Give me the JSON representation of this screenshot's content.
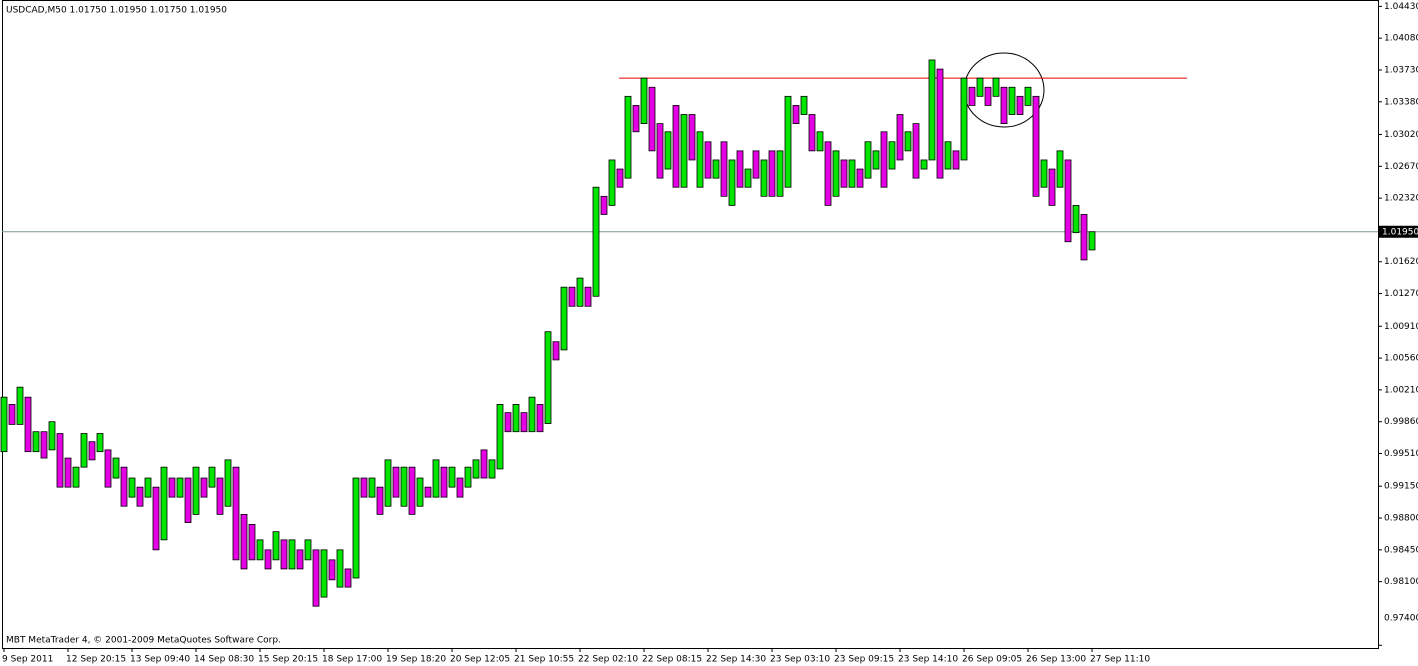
{
  "chart_data": {
    "type": "candlestick",
    "title": "USDCAD,M50  1.01750 1.01950 1.01750 1.01950",
    "footer": "MBT MetaTrader 4, © 2001-2009 MetaQuotes Software Corp.",
    "bull_color": "#00e600",
    "bear_color": "#e600e6",
    "ylim": [
      0.9737,
      1.045
    ],
    "yticks": [
      {
        "value": 1.0443,
        "label": "1.04430"
      },
      {
        "value": 1.0408,
        "label": "1.04080"
      },
      {
        "value": 1.0373,
        "label": "1.03730"
      },
      {
        "value": 1.0338,
        "label": "1.03380"
      },
      {
        "value": 1.0302,
        "label": "1.03020"
      },
      {
        "value": 1.0267,
        "label": "1.02670"
      },
      {
        "value": 1.0232,
        "label": "1.02320"
      },
      {
        "value": 1.0162,
        "label": "1.01620"
      },
      {
        "value": 1.0127,
        "label": "1.01270"
      },
      {
        "value": 1.0091,
        "label": "1.00910"
      },
      {
        "value": 1.0056,
        "label": "1.00560"
      },
      {
        "value": 1.0021,
        "label": "1.00210"
      },
      {
        "value": 0.9986,
        "label": "0.99860"
      },
      {
        "value": 0.9951,
        "label": "0.99510"
      },
      {
        "value": 0.9915,
        "label": "0.99150"
      },
      {
        "value": 0.988,
        "label": "0.98800"
      },
      {
        "value": 0.9845,
        "label": "0.98450"
      },
      {
        "value": 0.981,
        "label": "0.98100"
      },
      {
        "value": 0.974,
        "label": "0.97400"
      }
    ],
    "current_price": {
      "value": 1.0195,
      "label": "1.01950"
    },
    "resistance_level": 1.0364,
    "categories": [
      "9 Sep 2011",
      null,
      null,
      null,
      null,
      null,
      null,
      null,
      "12 Sep 20:15",
      null,
      null,
      null,
      null,
      null,
      null,
      null,
      "13 Sep 09:40",
      null,
      null,
      null,
      null,
      null,
      null,
      null,
      "14 Sep 08:30",
      null,
      null,
      null,
      null,
      null,
      null,
      null,
      "15 Sep 20:15",
      null,
      null,
      null,
      null,
      null,
      null,
      null,
      "18 Sep 17:00",
      null,
      null,
      null,
      null,
      null,
      null,
      null,
      "19 Sep 18:20",
      null,
      null,
      null,
      null,
      null,
      null,
      null,
      "20 Sep 12:05",
      null,
      null,
      null,
      null,
      null,
      null,
      null,
      "21 Sep 10:55",
      null,
      null,
      null,
      null,
      null,
      null,
      null,
      "22 Sep 02:10",
      null,
      null,
      null,
      null,
      null,
      null,
      null,
      "22 Sep 08:15",
      null,
      null,
      null,
      null,
      null,
      null,
      null,
      "22 Sep 14:30",
      null,
      null,
      null,
      null,
      null,
      null,
      null,
      "23 Sep 03:10",
      null,
      null,
      null,
      null,
      null,
      null,
      null,
      "23 Sep 09:15",
      null,
      null,
      null,
      null,
      null,
      null,
      null,
      "23 Sep 14:10",
      null,
      null,
      null,
      null,
      null,
      null,
      null,
      "26 Sep 09:05",
      null,
      null,
      null,
      null,
      null,
      null,
      null,
      "26 Sep 13:00",
      null,
      null,
      null,
      null,
      null,
      null,
      null,
      "27 Sep 11:10"
    ],
    "open": [
      0.9953,
      1.0005,
      0.9983,
      1.0013,
      0.9953,
      0.9975,
      0.9955,
      0.9973,
      0.9946,
      0.9914,
      0.9936,
      0.9964,
      0.9953,
      0.9955,
      0.9924,
      0.9936,
      0.9903,
      0.9914,
      0.9903,
      0.9914,
      0.9856,
      0.9924,
      0.9903,
      0.9924,
      0.9884,
      0.9924,
      0.9914,
      0.9924,
      0.9893,
      0.9936,
      0.9884,
      0.9873,
      0.9834,
      0.9845,
      0.9834,
      0.9856,
      0.9824,
      0.9845,
      0.9834,
      0.9845,
      0.9793,
      0.9834,
      0.9804,
      0.9824,
      0.9814,
      0.9924,
      0.9903,
      0.9914,
      0.9893,
      0.9936,
      0.9893,
      0.9936,
      0.9893,
      0.9914,
      0.9903,
      0.9936,
      0.9914,
      0.9924,
      0.9914,
      0.9924,
      0.9955,
      0.9924,
      0.9934,
      0.9996,
      0.9975,
      0.9996,
      0.9975,
      1.0005,
      0.9984,
      1.0074,
      1.0065,
      1.0134,
      1.0113,
      1.0134,
      1.0124,
      1.0234,
      1.0224,
      1.0264,
      1.0254,
      1.0334,
      1.0314,
      1.0354,
      1.0314,
      1.0264,
      1.0334,
      1.0244,
      1.0324,
      1.0244,
      1.0294,
      1.0254,
      1.0294,
      1.0224,
      1.0284,
      1.0244,
      1.0284,
      1.0234,
      1.0284,
      1.0234,
      1.0244,
      1.0334,
      1.0324,
      1.0324,
      1.0284,
      1.0294,
      1.0234,
      1.0274,
      1.0244,
      1.0264,
      1.0254,
      1.0264,
      1.0305,
      1.0264,
      1.0324,
      1.0284,
      1.0314,
      1.0264,
      1.0274,
      1.0374,
      1.0264,
      1.0284,
      1.0274,
      1.0354,
      1.0344,
      1.0354,
      1.0344,
      1.0354,
      1.0324,
      1.0344,
      1.0334,
      1.0344,
      1.0244,
      1.0264,
      1.0244,
      1.0274,
      1.0194,
      1.0214,
      1.0175
    ],
    "close": [
      1.0013,
      0.9983,
      1.0024,
      0.9953,
      0.9975,
      0.9946,
      0.9986,
      0.9914,
      0.9914,
      0.9936,
      0.9973,
      0.9944,
      0.9973,
      0.9914,
      0.9946,
      0.9893,
      0.9924,
      0.9893,
      0.9924,
      0.9845,
      0.9936,
      0.9903,
      0.9924,
      0.9875,
      0.9936,
      0.9903,
      0.9936,
      0.9884,
      0.9944,
      0.9834,
      0.9824,
      0.9834,
      0.9856,
      0.9824,
      0.9865,
      0.9824,
      0.9856,
      0.9824,
      0.9856,
      0.9783,
      0.9845,
      0.9812,
      0.9845,
      0.9804,
      0.9924,
      0.9903,
      0.9924,
      0.9884,
      0.9944,
      0.9903,
      0.9936,
      0.9884,
      0.9924,
      0.9903,
      0.9944,
      0.9903,
      0.9936,
      0.9903,
      0.9936,
      0.9944,
      0.9924,
      0.9944,
      1.0005,
      0.9975,
      1.0005,
      0.9975,
      1.0013,
      0.9975,
      1.0085,
      1.0054,
      1.0134,
      1.0113,
      1.0144,
      1.0113,
      1.0244,
      1.0214,
      1.0274,
      1.0244,
      1.0344,
      1.0305,
      1.0364,
      1.0284,
      1.0254,
      1.0305,
      1.0244,
      1.0324,
      1.0274,
      1.0305,
      1.0254,
      1.0274,
      1.0234,
      1.0274,
      1.0244,
      1.0264,
      1.0254,
      1.0274,
      1.0234,
      1.0284,
      1.0344,
      1.0314,
      1.0344,
      1.0284,
      1.0305,
      1.0224,
      1.0284,
      1.0244,
      1.0274,
      1.0244,
      1.0294,
      1.0284,
      1.0244,
      1.0294,
      1.0274,
      1.0305,
      1.0254,
      1.0274,
      1.0384,
      1.0254,
      1.0294,
      1.0264,
      1.0364,
      1.0334,
      1.0364,
      1.0334,
      1.0364,
      1.0314,
      1.0354,
      1.0324,
      1.0354,
      1.0234,
      1.0274,
      1.0224,
      1.0284,
      1.0184,
      1.0224,
      1.0164,
      1.0195
    ]
  }
}
